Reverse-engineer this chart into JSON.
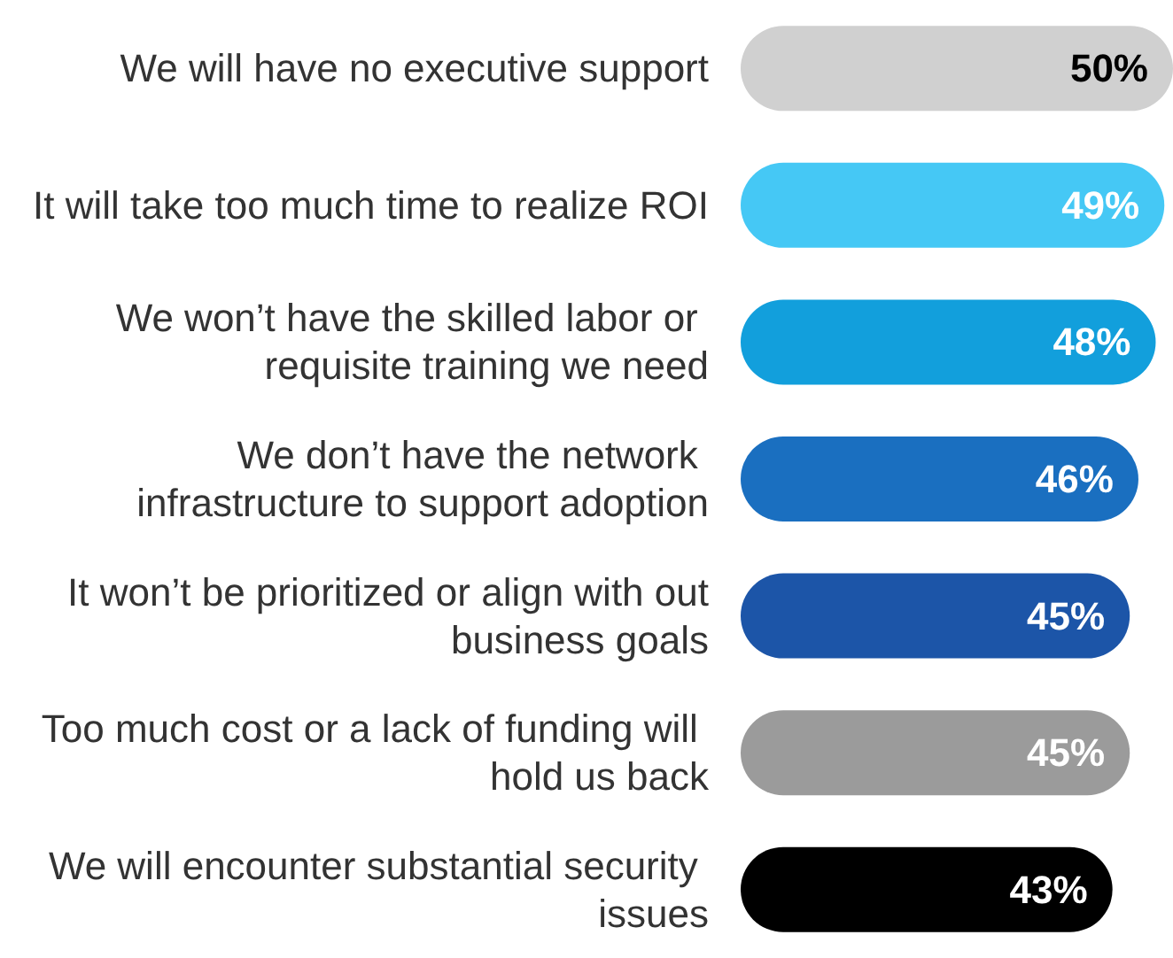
{
  "chart_data": {
    "type": "bar",
    "orientation": "horizontal",
    "categories": [
      "We will have no executive support",
      "It will take too much time to realize ROI",
      "We won’t have the skilled labor or requisite training we need",
      "We don’t have the network infrastructure to support adoption",
      "It won’t be prioritized or align with out business goals",
      "Too much cost or a lack of funding will hold us back",
      "We will encounter substantial security issues"
    ],
    "values": [
      50,
      49,
      48,
      46,
      45,
      45,
      43
    ],
    "colors": [
      "#d0d0d0",
      "#45c8f5",
      "#129fdc",
      "#1a6fc0",
      "#1c55a8",
      "#9b9b9b",
      "#000000"
    ],
    "tick_labels": "y",
    "value_labels": [
      "50%",
      "49%",
      "48%",
      "46%",
      "45%",
      "45%",
      "43%"
    ]
  }
}
